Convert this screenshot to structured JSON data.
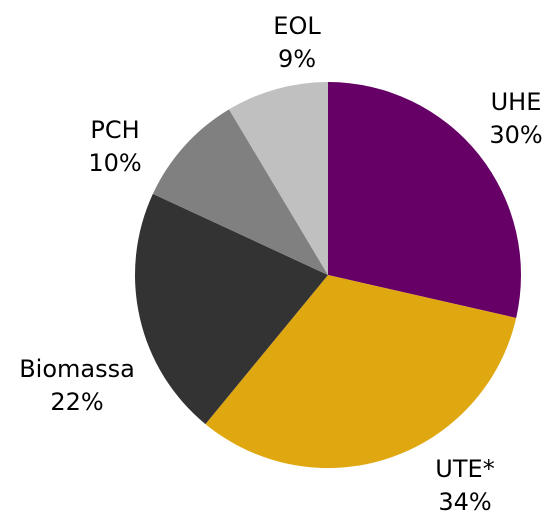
{
  "chart_data": {
    "type": "pie",
    "categories": [
      "UHE",
      "UTE*",
      "Biomassa",
      "PCH",
      "EOL"
    ],
    "values": [
      30,
      34,
      22,
      10,
      9
    ],
    "value_labels": [
      "30%",
      "34%",
      "22%",
      "10%",
      "9%"
    ],
    "colors": [
      "#660066",
      "#e0a810",
      "#333333",
      "#808080",
      "#c0c0c0"
    ]
  }
}
